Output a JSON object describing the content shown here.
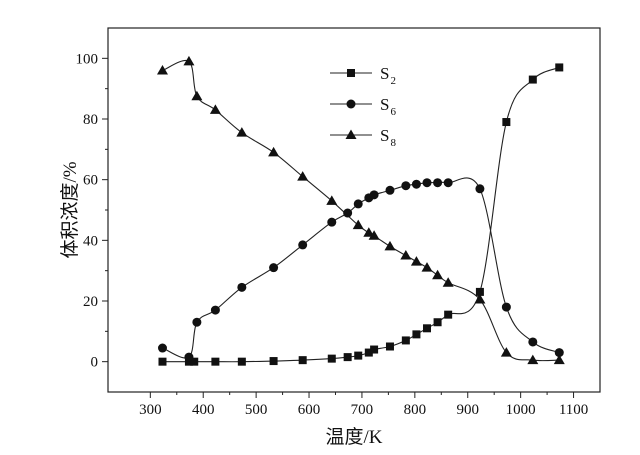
{
  "chart_data": {
    "type": "line",
    "xlabel": "温度/K",
    "ylabel": "体积浓度/%",
    "xlim": [
      220,
      1150
    ],
    "ylim": [
      -10,
      110
    ],
    "xticks": [
      300,
      400,
      500,
      600,
      700,
      800,
      900,
      1000,
      1100
    ],
    "yticks": [
      0,
      20,
      40,
      60,
      80,
      100
    ],
    "grid": false,
    "legend_position": "top-center",
    "series": [
      {
        "name": "S",
        "subscript": "2",
        "marker": "square",
        "x": [
          323,
          373,
          383,
          423,
          473,
          533,
          588,
          643,
          673,
          693,
          713,
          723,
          753,
          783,
          803,
          823,
          843,
          863,
          923,
          973,
          1023,
          1073
        ],
        "y": [
          0,
          0,
          0,
          0,
          0,
          0.2,
          0.5,
          1,
          1.5,
          2,
          3,
          4,
          5,
          7,
          9,
          11,
          13,
          15.5,
          23,
          79,
          93,
          97
        ]
      },
      {
        "name": "S",
        "subscript": "6",
        "marker": "circle",
        "x": [
          323,
          373,
          388,
          423,
          473,
          533,
          588,
          643,
          673,
          693,
          713,
          723,
          753,
          783,
          803,
          823,
          843,
          863,
          923,
          973,
          1023,
          1073
        ],
        "y": [
          4.5,
          1.5,
          13,
          17,
          24.5,
          31,
          38.5,
          46,
          49,
          52,
          54,
          55,
          56.5,
          58,
          58.5,
          59,
          59,
          59,
          57,
          18,
          6.5,
          3
        ]
      },
      {
        "name": "S",
        "subscript": "8",
        "marker": "triangle",
        "x": [
          323,
          373,
          388,
          423,
          473,
          533,
          588,
          643,
          693,
          713,
          723,
          753,
          783,
          803,
          823,
          843,
          863,
          923,
          973,
          1023,
          1073
        ],
        "y": [
          96,
          99,
          87.5,
          83,
          75.5,
          69,
          61,
          53,
          45,
          42.5,
          41.5,
          38,
          35,
          33,
          31,
          28.5,
          26,
          20.5,
          3,
          0.5,
          0.5
        ]
      }
    ]
  }
}
